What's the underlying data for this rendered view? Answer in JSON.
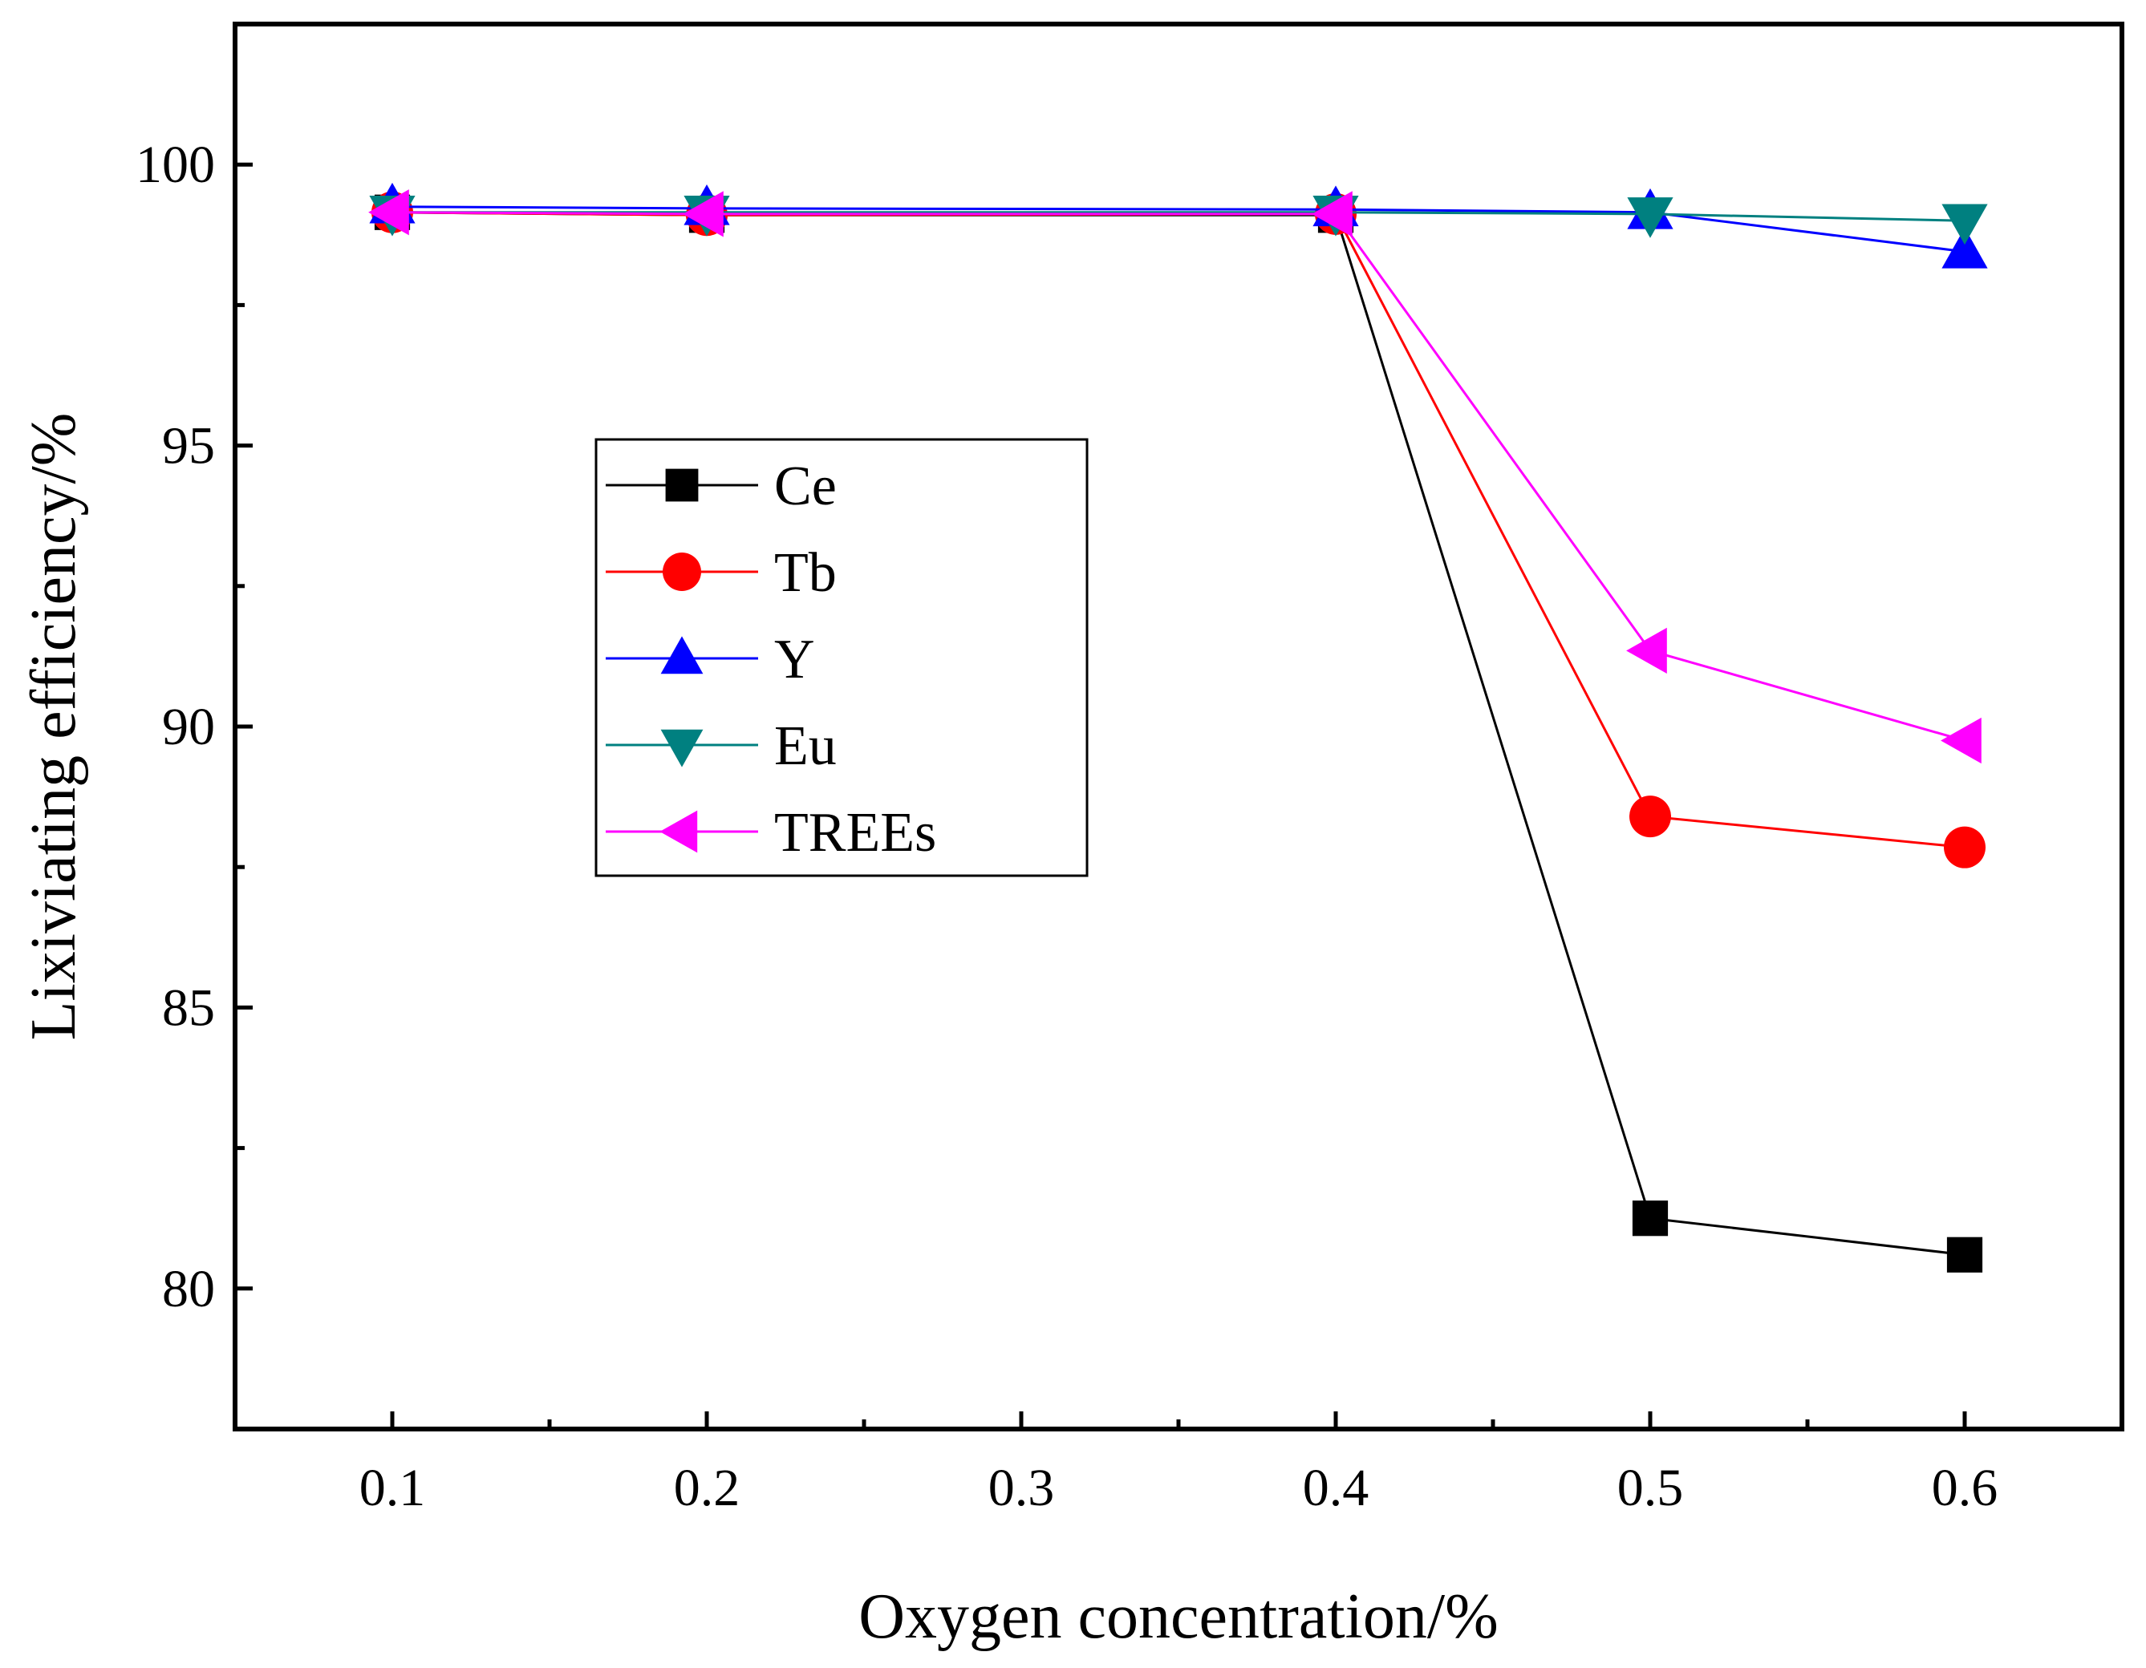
{
  "chart_data": {
    "type": "line",
    "title": "",
    "xlabel": "Oxygen concentration/%",
    "ylabel": "Lixiviating efficiency/%",
    "xlim": [
      0.05,
      0.65
    ],
    "ylim": [
      77.5,
      102.5
    ],
    "xticks": [
      0.1,
      0.2,
      0.3,
      0.4,
      0.5,
      0.6
    ],
    "xtick_labels": [
      "0.1",
      "0.2",
      "0.3",
      "0.4",
      "0.5",
      "0.6"
    ],
    "xminor": [
      0.15,
      0.25,
      0.35,
      0.45,
      0.55
    ],
    "yticks": [
      80,
      85,
      90,
      95,
      100
    ],
    "ytick_labels": [
      "80",
      "85",
      "90",
      "95",
      "100"
    ],
    "yminor": [
      77.5,
      82.5,
      87.5,
      92.5,
      97.5,
      102.5
    ],
    "grid": false,
    "legend_position": "center-left",
    "series": [
      {
        "name": "Ce",
        "color": "#000000",
        "marker": "square",
        "x": [
          0.1,
          0.2,
          0.4,
          0.5,
          0.6
        ],
        "y": [
          99.15,
          99.1,
          99.1,
          81.25,
          80.6
        ]
      },
      {
        "name": "Tb",
        "color": "#ff0000",
        "marker": "circle",
        "x": [
          0.1,
          0.2,
          0.4,
          0.5,
          0.6
        ],
        "y": [
          99.15,
          99.1,
          99.12,
          88.4,
          87.85
        ]
      },
      {
        "name": "Y",
        "color": "#0000ff",
        "marker": "triangle-up",
        "x": [
          0.1,
          0.2,
          0.4,
          0.5,
          0.6
        ],
        "y": [
          99.25,
          99.22,
          99.2,
          99.15,
          98.45
        ]
      },
      {
        "name": "Eu",
        "color": "#008080",
        "marker": "triangle-down",
        "x": [
          0.1,
          0.2,
          0.4,
          0.5,
          0.6
        ],
        "y": [
          99.15,
          99.15,
          99.15,
          99.12,
          99.0
        ]
      },
      {
        "name": "TREEs",
        "color": "#ff00ff",
        "marker": "triangle-left",
        "x": [
          0.1,
          0.2,
          0.4,
          0.5,
          0.6
        ],
        "y": [
          99.15,
          99.12,
          99.12,
          91.35,
          89.75
        ]
      }
    ]
  }
}
